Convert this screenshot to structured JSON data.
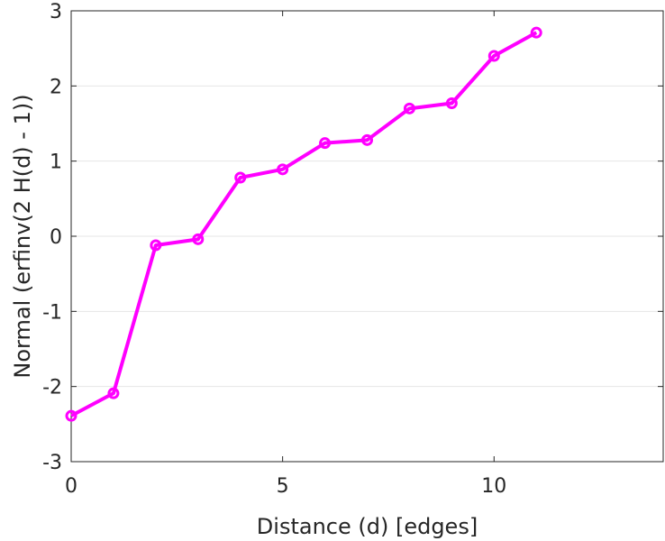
{
  "chart_data": {
    "type": "line",
    "title": "",
    "xlabel": "Distance (d) [edges]",
    "ylabel": "Normal (erfinv(2 H(d) - 1))",
    "xlim": [
      0,
      14
    ],
    "ylim": [
      -3,
      3
    ],
    "x_ticks": [
      0,
      5,
      10
    ],
    "y_ticks": [
      -3,
      -2,
      -1,
      0,
      1,
      2,
      3
    ],
    "grid": true,
    "grid_axis": "y",
    "legend": null,
    "series": [
      {
        "color": "#ff00ff",
        "marker": "circle",
        "x": [
          0,
          1,
          2,
          3,
          4,
          5,
          6,
          7,
          8,
          9,
          10,
          11
        ],
        "y": [
          -2.39,
          -2.09,
          -0.12,
          -0.04,
          0.78,
          0.89,
          1.24,
          1.28,
          1.7,
          1.77,
          2.4,
          2.71
        ]
      }
    ]
  }
}
